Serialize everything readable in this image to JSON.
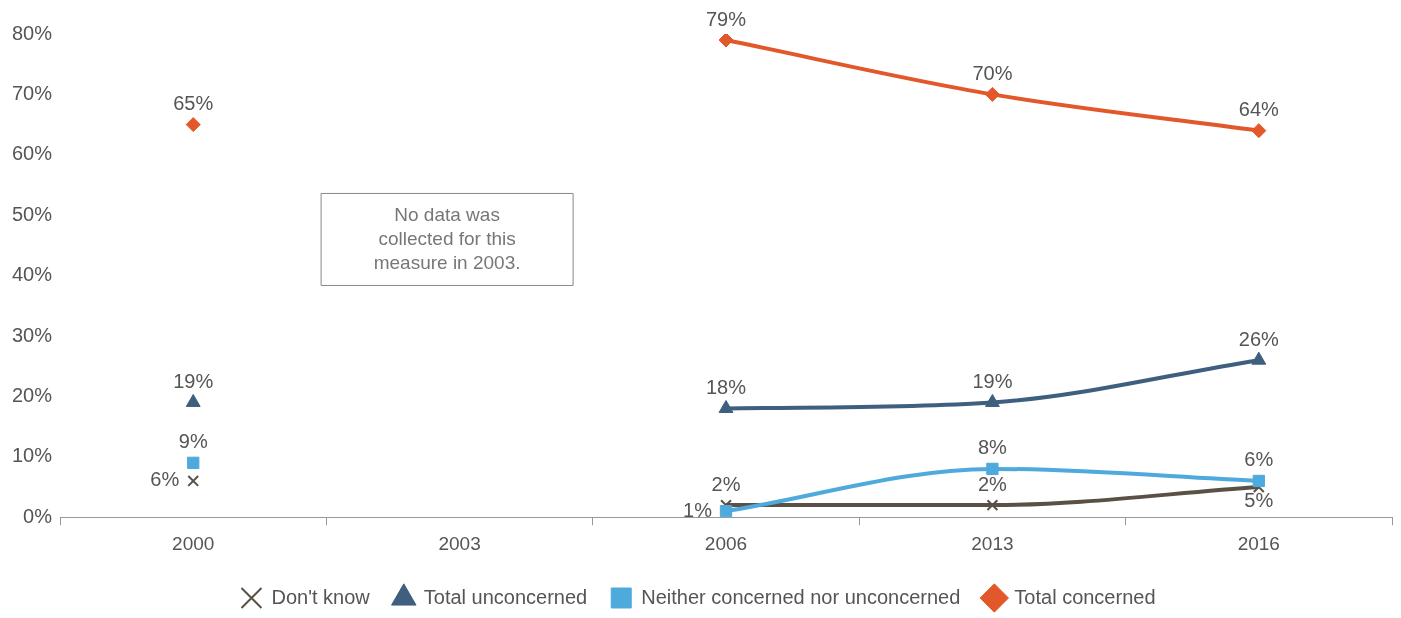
{
  "chart_data": {
    "type": "line",
    "categories": [
      "2000",
      "2003",
      "2006",
      "2013",
      "2016"
    ],
    "series": [
      {
        "name": "Don't know",
        "color": "#5b5045",
        "marker": "cross",
        "values": [
          6,
          null,
          2,
          2,
          5
        ],
        "value_labels": [
          "6%",
          null,
          "2%",
          "2%",
          "5%"
        ]
      },
      {
        "name": "Total unconcerned",
        "color": "#3e5f7e",
        "marker": "triangle",
        "values": [
          19,
          null,
          18,
          19,
          26
        ],
        "value_labels": [
          "19%",
          null,
          "18%",
          "19%",
          "26%"
        ]
      },
      {
        "name": "Neither concerned nor unconcerned",
        "color": "#4eaadc",
        "marker": "square",
        "values": [
          9,
          null,
          1,
          8,
          6
        ],
        "value_labels": [
          "9%",
          null,
          "1%",
          "8%",
          "6%"
        ]
      },
      {
        "name": "Total concerned",
        "color": "#e2582a",
        "marker": "diamond",
        "values": [
          65,
          null,
          79,
          70,
          64
        ],
        "value_labels": [
          "65%",
          null,
          "79%",
          "70%",
          "64%"
        ]
      }
    ],
    "ylim": [
      0,
      80
    ],
    "yticks": [
      {
        "value": 0,
        "label": "0%"
      },
      {
        "value": 10,
        "label": "10%"
      },
      {
        "value": 20,
        "label": "20%"
      },
      {
        "value": 30,
        "label": "30%"
      },
      {
        "value": 40,
        "label": "40%"
      },
      {
        "value": 50,
        "label": "50%"
      },
      {
        "value": 60,
        "label": "60%"
      },
      {
        "value": 70,
        "label": "70%"
      },
      {
        "value": 80,
        "label": "80%"
      }
    ],
    "annotations": [
      "No data was collected for this measure in 2003."
    ],
    "grid": false,
    "legend": "bottom"
  }
}
